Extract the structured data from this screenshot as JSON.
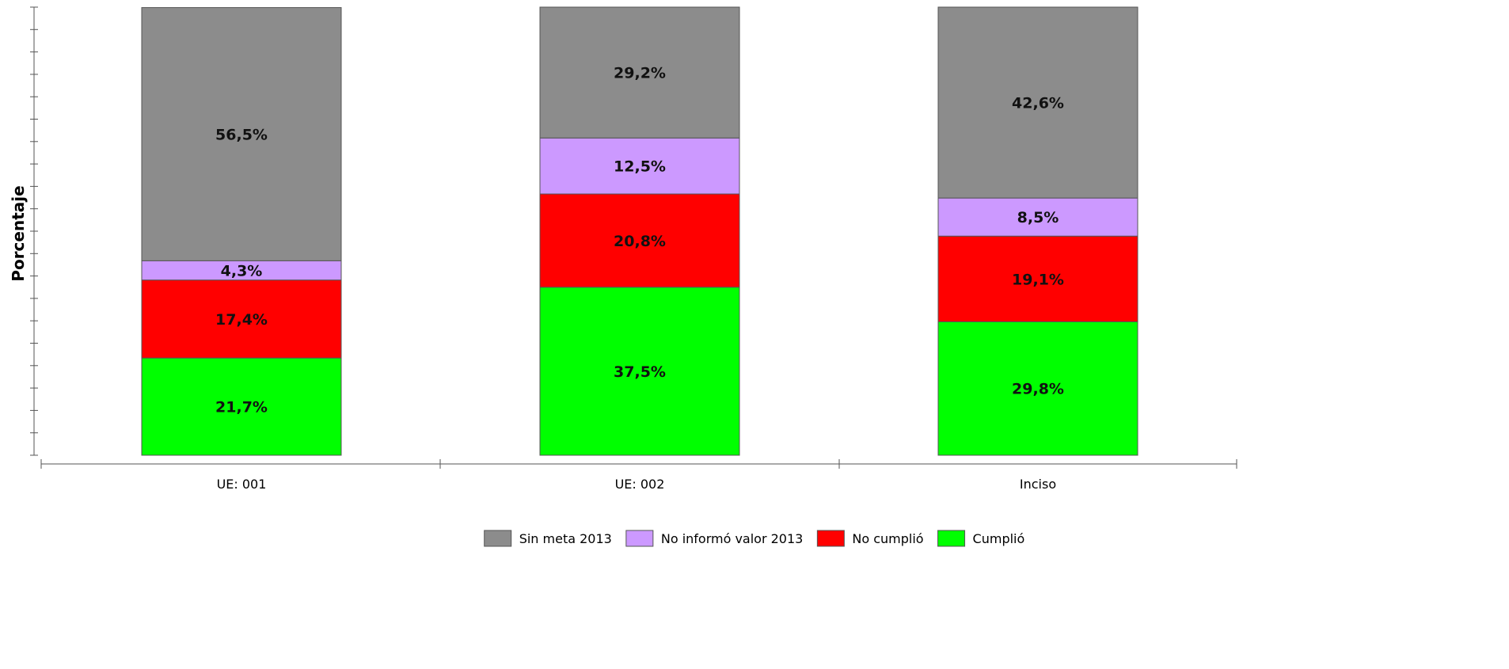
{
  "chart_data": {
    "type": "bar",
    "stacked": true,
    "normalized_percent": true,
    "categories": [
      "UE: 001",
      "UE: 002",
      "Inciso"
    ],
    "ylabel": "Porcentaje",
    "xlabel": "",
    "ylim": [
      0,
      100
    ],
    "grid": false,
    "legend_position": "bottom-center",
    "series": [
      {
        "name": "Cumplió",
        "color": "#00ff00",
        "values": [
          21.7,
          37.5,
          29.8
        ],
        "labels": [
          "21,7%",
          "37,5%",
          "29,8%"
        ]
      },
      {
        "name": "No cumplió",
        "color": "#ff0000",
        "values": [
          17.4,
          20.8,
          19.1
        ],
        "labels": [
          "17,4%",
          "20,8%",
          "19,1%"
        ]
      },
      {
        "name": "No informó valor 2013",
        "color": "#cc99ff",
        "values": [
          4.3,
          12.5,
          8.5
        ],
        "labels": [
          "4,3%",
          "12,5%",
          "8,5%"
        ]
      },
      {
        "name": "Sin meta 2013",
        "color": "#8c8c8c",
        "values": [
          56.5,
          29.2,
          42.6
        ],
        "labels": [
          "56,5%",
          "29,2%",
          "42,6%"
        ]
      }
    ],
    "legend_order": [
      "Sin meta 2013",
      "No informó valor 2013",
      "No cumplió",
      "Cumplió"
    ]
  }
}
